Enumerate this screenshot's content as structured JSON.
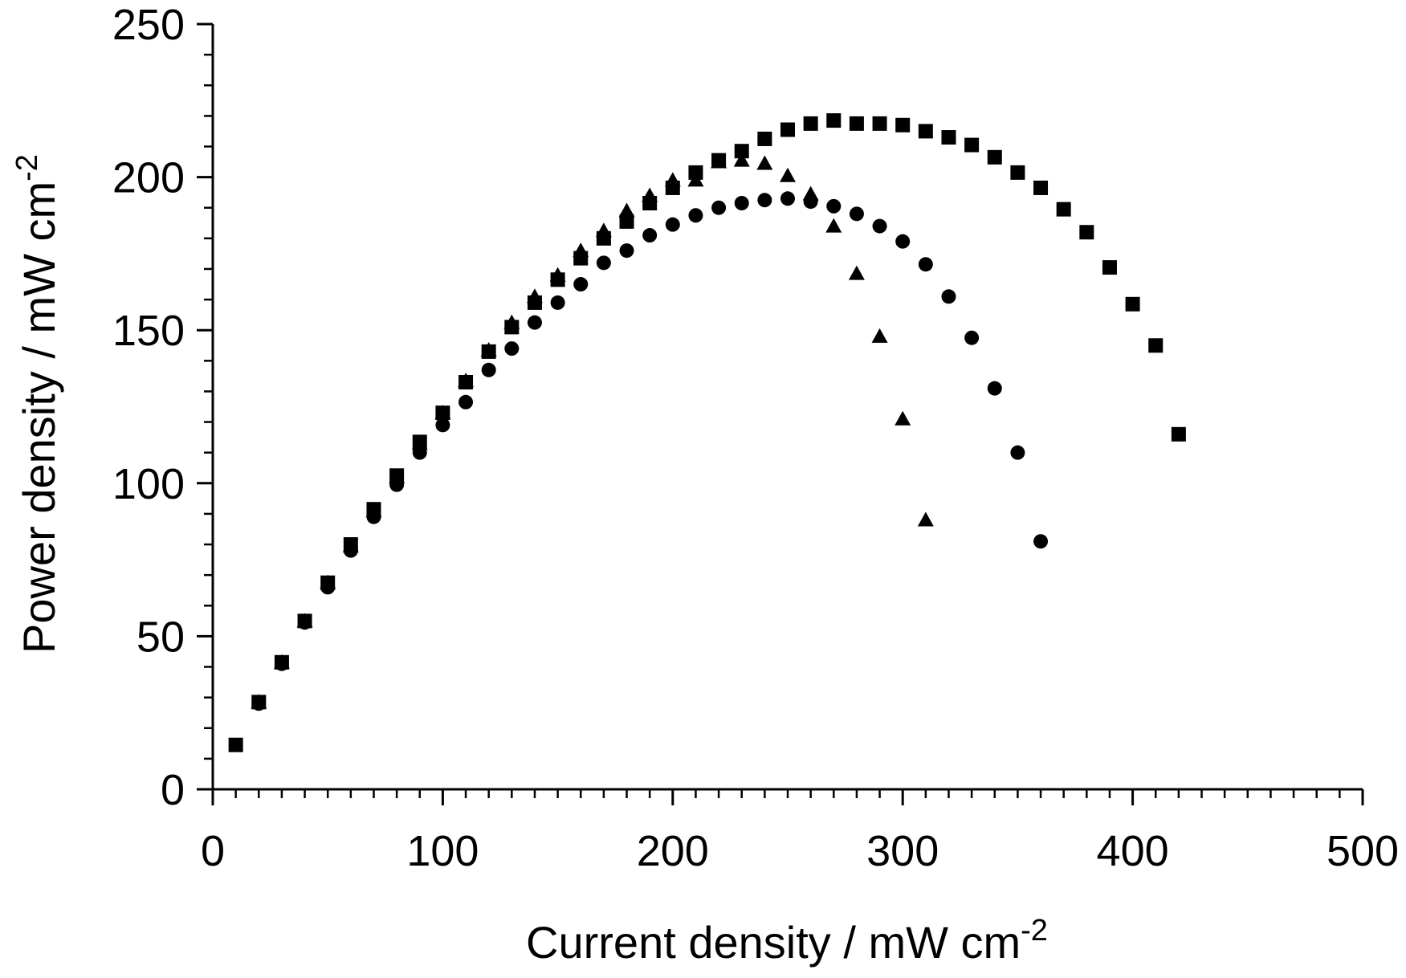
{
  "chart_data": {
    "type": "scatter",
    "title": "",
    "xlabel": {
      "text": "Current density / mW cm",
      "superscript": "-2"
    },
    "ylabel": {
      "text": "Power density / mW cm",
      "superscript": "-2"
    },
    "xlim": [
      0,
      500
    ],
    "ylim": [
      0,
      250
    ],
    "xticks": [
      0,
      100,
      200,
      300,
      400,
      500
    ],
    "yticks": [
      0,
      50,
      100,
      150,
      200,
      250
    ],
    "x_minor_step": 10,
    "y_minor_step": 10,
    "grid": false,
    "legend": "none",
    "series": [
      {
        "marker": "square",
        "color": "#000000",
        "x": [
          10,
          20,
          30,
          40,
          50,
          60,
          70,
          80,
          90,
          100,
          110,
          120,
          130,
          140,
          150,
          160,
          170,
          180,
          190,
          200,
          210,
          220,
          230,
          240,
          250,
          260,
          270,
          280,
          290,
          300,
          310,
          320,
          330,
          340,
          350,
          360,
          370,
          380,
          390,
          400,
          410,
          420
        ],
        "y": [
          14.5,
          28.5,
          41.5,
          55,
          67.5,
          80,
          91.5,
          102.5,
          113.5,
          123,
          133,
          143,
          151,
          159,
          166.5,
          173.5,
          180,
          185.5,
          191.5,
          196.5,
          201.5,
          205.5,
          208.5,
          212.5,
          215.5,
          217.5,
          218.5,
          217.5,
          217.5,
          217,
          215,
          213,
          210.5,
          206.5,
          201.5,
          196.5,
          189.5,
          182,
          170.5,
          158.5,
          145,
          116
        ]
      },
      {
        "marker": "triangle",
        "color": "#000000",
        "x": [
          20,
          30,
          40,
          50,
          60,
          70,
          80,
          90,
          100,
          110,
          120,
          130,
          140,
          150,
          160,
          170,
          180,
          190,
          200,
          210,
          220,
          230,
          240,
          250,
          260,
          270,
          280,
          290,
          300,
          310
        ],
        "y": [
          28.5,
          41.5,
          55,
          67.5,
          79.5,
          91,
          102,
          113,
          123,
          133.5,
          143.5,
          152.5,
          161,
          168,
          176,
          182.5,
          189,
          194,
          199,
          199,
          205,
          205.5,
          204.5,
          200.5,
          194.5,
          184,
          168.5,
          148,
          121,
          88
        ]
      },
      {
        "marker": "circle",
        "color": "#000000",
        "x": [
          20,
          30,
          40,
          50,
          60,
          70,
          80,
          90,
          100,
          110,
          120,
          130,
          140,
          150,
          160,
          170,
          180,
          190,
          200,
          210,
          220,
          230,
          240,
          250,
          260,
          270,
          280,
          290,
          300,
          310,
          320,
          330,
          340,
          350,
          360
        ],
        "y": [
          28,
          41,
          54.5,
          66,
          78,
          89,
          99.5,
          110,
          119,
          126.5,
          137,
          144,
          152.5,
          159,
          165,
          172,
          176,
          181,
          184.5,
          187.5,
          190,
          191.5,
          192.5,
          193,
          192,
          190.5,
          188,
          184,
          179,
          171.5,
          161,
          147.5,
          131,
          110,
          81
        ]
      }
    ]
  }
}
